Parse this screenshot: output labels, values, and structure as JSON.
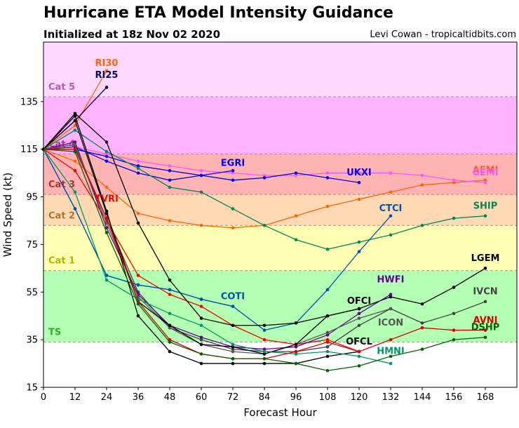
{
  "header": {
    "title": "Hurricane ETA Model Intensity Guidance",
    "subtitle": "Initialized at 18z Nov 02 2020",
    "credit": "Levi Cowan - tropicaltidbits.com"
  },
  "chart_data": {
    "type": "line",
    "xlabel": "Forecast Hour",
    "ylabel": "Wind Speed (kt)",
    "xlim": [
      0,
      180
    ],
    "ylim": [
      15,
      160
    ],
    "xticks": [
      0,
      12,
      24,
      36,
      48,
      60,
      72,
      84,
      96,
      108,
      120,
      132,
      144,
      156,
      168
    ],
    "yticks": [
      15,
      35,
      55,
      75,
      95,
      115,
      135
    ],
    "grid": false,
    "categories": [
      {
        "label": "TS",
        "min": 34,
        "max": 64,
        "color": "#b3ffb3",
        "text_color": "#33aa33"
      },
      {
        "label": "Cat 1",
        "min": 64,
        "max": 83,
        "color": "#ffffb3",
        "text_color": "#b3b300"
      },
      {
        "label": "Cat 2",
        "min": 83,
        "max": 96,
        "color": "#ffd9b3",
        "text_color": "#aa7733"
      },
      {
        "label": "Cat 3",
        "min": 96,
        "max": 113,
        "color": "#ffb3b3",
        "text_color": "#aa3333"
      },
      {
        "label": "Cat 4",
        "min": 113,
        "max": 137,
        "color": "#ffb3ff",
        "text_color": "#aa33aa"
      },
      {
        "label": "Cat 5",
        "min": 137,
        "max": 160,
        "color": "#ffd9ff",
        "text_color": "#bb55bb"
      }
    ],
    "series": [
      {
        "name": "RI30",
        "color": "#ff6600",
        "x": [
          0,
          12,
          24
        ],
        "y": [
          115,
          125,
          148
        ]
      },
      {
        "name": "RI25",
        "color": "#000066",
        "x": [
          0,
          12,
          24
        ],
        "y": [
          115,
          127,
          141
        ]
      },
      {
        "name": "AEMI",
        "color": "#ff6600",
        "x": [
          0,
          12,
          24,
          36,
          48,
          60,
          72,
          84,
          96,
          108,
          120,
          132,
          144,
          156,
          168
        ],
        "y": [
          115,
          110,
          99,
          88,
          85,
          83,
          82,
          83,
          87,
          91,
          94,
          97,
          100,
          101,
          102
        ]
      },
      {
        "name": "GEMI",
        "color": "#ff55ff",
        "x": [
          0,
          12,
          24,
          36,
          48,
          60,
          72,
          84,
          96,
          108,
          120,
          132,
          144,
          156,
          168
        ],
        "y": [
          115,
          116,
          113,
          110,
          108,
          106,
          105,
          104,
          104,
          105,
          105,
          105,
          104,
          102,
          101
        ]
      },
      {
        "name": "EGRI",
        "color": "#0000ff",
        "x": [
          0,
          12,
          24,
          36,
          48,
          60,
          72
        ],
        "y": [
          115,
          115,
          112,
          108,
          106,
          104,
          106
        ]
      },
      {
        "name": "UKXI",
        "color": "#0000ee",
        "x": [
          0,
          12,
          24,
          36,
          48,
          60,
          72,
          84,
          96,
          108,
          120
        ],
        "y": [
          115,
          116,
          110,
          105,
          102,
          104,
          102,
          103,
          105,
          103,
          101
        ]
      },
      {
        "name": "SHIP",
        "color": "#008855",
        "x": [
          0,
          12,
          24,
          36,
          48,
          60,
          72,
          84,
          96,
          108,
          120,
          132,
          144,
          156,
          168
        ],
        "y": [
          115,
          123,
          114,
          107,
          99,
          97,
          90,
          83,
          77,
          73,
          76,
          79,
          83,
          86,
          87
        ]
      },
      {
        "name": "CTCI",
        "color": "#0055aa",
        "x": [
          0,
          12,
          24,
          36,
          48,
          60,
          72,
          84,
          96,
          108,
          120,
          132
        ],
        "y": [
          115,
          90,
          62,
          58,
          56,
          52,
          49,
          39,
          42,
          56,
          72,
          87
        ]
      },
      {
        "name": "TVRI",
        "color": "#ff0000",
        "x": [
          0,
          12,
          24,
          36,
          48,
          60,
          72,
          84,
          96,
          108,
          120
        ],
        "y": [
          115,
          106,
          85,
          62,
          54,
          49,
          41,
          35,
          33,
          35,
          30
        ]
      },
      {
        "name": "COTI",
        "color": "#0055aa",
        "x": [
          0,
          12,
          24,
          36,
          48,
          60,
          72
        ],
        "y": [
          115,
          90,
          62,
          58,
          56,
          52,
          49
        ]
      },
      {
        "name": "LGEM",
        "color": "#000000",
        "x": [
          0,
          12,
          24,
          36,
          48,
          60,
          72,
          84,
          96,
          108,
          120,
          132,
          144,
          156,
          168
        ],
        "y": [
          115,
          130,
          118,
          84,
          60,
          44,
          41,
          41,
          42,
          45,
          48,
          53,
          50,
          57,
          65
        ]
      },
      {
        "name": "IVCN",
        "color": "#444444",
        "x": [
          0,
          12,
          24,
          36,
          48,
          60,
          72,
          84,
          96,
          108,
          120,
          132,
          144,
          156,
          168
        ],
        "y": [
          115,
          116,
          86,
          55,
          40,
          35,
          31,
          30,
          30,
          32,
          41,
          48,
          42,
          46,
          51
        ]
      },
      {
        "name": "HWFI",
        "color": "#660099",
        "x": [
          0,
          12,
          24,
          36,
          48,
          60,
          72,
          84,
          96,
          108,
          120,
          132
        ],
        "y": [
          115,
          118,
          82,
          54,
          41,
          36,
          32,
          31,
          32,
          37,
          46,
          54
        ]
      },
      {
        "name": "ICON",
        "color": "#555555",
        "x": [
          0,
          12,
          24,
          36,
          48,
          60,
          72,
          84,
          96,
          108,
          120,
          132
        ],
        "y": [
          115,
          117,
          84,
          53,
          40,
          33,
          30,
          29,
          33,
          38,
          44,
          48
        ]
      },
      {
        "name": "OFCL",
        "color": "#000000",
        "x": [
          0,
          12,
          24,
          36,
          48,
          60,
          72,
          84,
          96,
          108,
          120
        ],
        "y": [
          115,
          129,
          89,
          45,
          30,
          25,
          25,
          25,
          25,
          28,
          30
        ]
      },
      {
        "name": "OFCI",
        "color": "#000000",
        "x": [
          0,
          12,
          24,
          36,
          48,
          60,
          72,
          84,
          96,
          108,
          120
        ],
        "y": [
          115,
          127,
          88,
          51,
          41,
          33,
          32,
          29,
          33,
          45,
          48
        ]
      },
      {
        "name": "HMNI",
        "color": "#009966",
        "x": [
          0,
          12,
          24,
          36,
          48,
          60,
          72,
          84,
          96,
          108,
          120,
          132
        ],
        "y": [
          115,
          97,
          60,
          52,
          46,
          41,
          33,
          30,
          29,
          30,
          28,
          25
        ]
      },
      {
        "name": "AVNI",
        "color": "#dd0000",
        "x": [
          0,
          12,
          24,
          36,
          48,
          60,
          72,
          84,
          96,
          108,
          120,
          132,
          144,
          156,
          168
        ],
        "y": [
          115,
          115,
          86,
          51,
          35,
          29,
          27,
          27,
          30,
          34,
          30,
          35,
          40,
          39,
          39
        ]
      },
      {
        "name": "DSHP",
        "color": "#006600",
        "x": [
          0,
          12,
          24,
          36,
          48,
          60,
          72,
          84,
          96,
          108,
          120,
          132,
          144,
          156,
          168
        ],
        "y": [
          115,
          114,
          80,
          50,
          34,
          29,
          27,
          27,
          25,
          22,
          24,
          28,
          31,
          35,
          36
        ]
      }
    ],
    "labels": [
      {
        "text": "RI30",
        "x": 24,
        "y": 150,
        "color": "#ff6600"
      },
      {
        "text": "RI25",
        "x": 24,
        "y": 145,
        "color": "#000066"
      },
      {
        "text": "EGRI",
        "x": 72,
        "y": 108,
        "color": "#0000ff"
      },
      {
        "text": "UKXI",
        "x": 120,
        "y": 104,
        "color": "#0000ee"
      },
      {
        "text": "AEMI",
        "x": 168,
        "y": 105,
        "color": "#ff6600"
      },
      {
        "text": "GEMI",
        "x": 168,
        "y": 104,
        "color": "#ff55ff"
      },
      {
        "text": "SHIP",
        "x": 168,
        "y": 90,
        "color": "#008855"
      },
      {
        "text": "TVRI",
        "x": 24,
        "y": 93,
        "color": "#ff0000"
      },
      {
        "text": "CTCI",
        "x": 132,
        "y": 89,
        "color": "#0055aa"
      },
      {
        "text": "LGEM",
        "x": 168,
        "y": 68,
        "color": "#000000"
      },
      {
        "text": "HWFI",
        "x": 132,
        "y": 59,
        "color": "#660099"
      },
      {
        "text": "COTI",
        "x": 72,
        "y": 52,
        "color": "#0055aa"
      },
      {
        "text": "OFCI",
        "x": 120,
        "y": 50,
        "color": "#000000"
      },
      {
        "text": "IVCN",
        "x": 168,
        "y": 54,
        "color": "#444444"
      },
      {
        "text": "ICON",
        "x": 132,
        "y": 41,
        "color": "#555555"
      },
      {
        "text": "OFCL",
        "x": 120,
        "y": 33,
        "color": "#000000"
      },
      {
        "text": "AVNI",
        "x": 168,
        "y": 42,
        "color": "#dd0000"
      },
      {
        "text": "DSHP",
        "x": 168,
        "y": 39,
        "color": "#006600"
      },
      {
        "text": "HMNI",
        "x": 132,
        "y": 29,
        "color": "#009966"
      }
    ]
  }
}
